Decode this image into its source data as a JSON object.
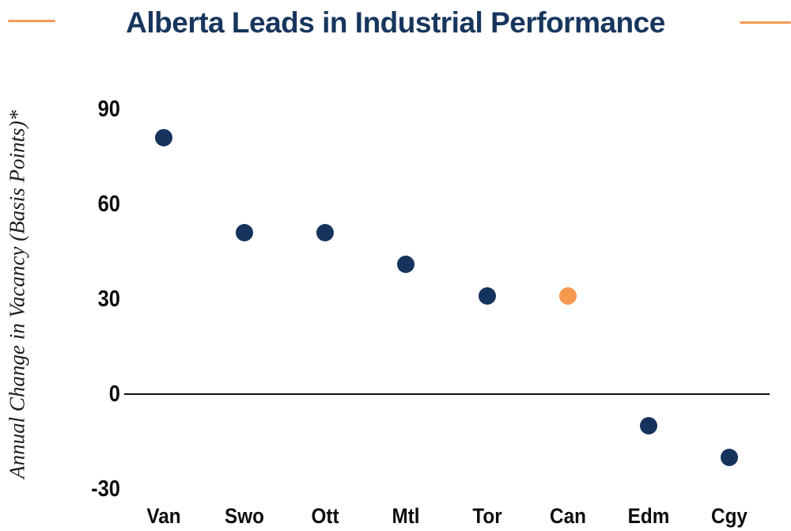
{
  "header": {
    "title": "Alberta Leads in Industrial Performance"
  },
  "chart_data": {
    "type": "scatter",
    "title": "Alberta Leads in Industrial Performance",
    "ylabel": "Annual Change in Vacancy (Basis Points)*",
    "xlabel": "",
    "categories": [
      "Van",
      "Swo",
      "Ott",
      "Mtl",
      "Tor",
      "Can",
      "Edm",
      "Cgy"
    ],
    "values": [
      81,
      51,
      51,
      41,
      31,
      31,
      -10,
      -20
    ],
    "highlight_category": "Can",
    "yticks": [
      90,
      60,
      30,
      0,
      -30
    ],
    "ylim": [
      -42,
      103
    ],
    "grid": false,
    "zero_line": true,
    "legend": "none",
    "colors": {
      "point": "#15335C",
      "highlight_point": "#F5994F",
      "title": "#17365D",
      "accent_dash": "#F59A55",
      "axis_text": "#0D0D0D",
      "zero_line": "#111111"
    }
  }
}
